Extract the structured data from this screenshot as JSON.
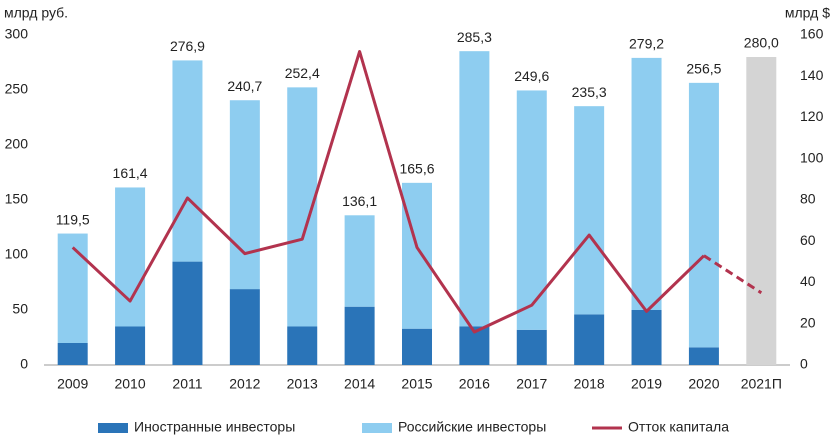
{
  "chart_data": {
    "type": "bar",
    "y_label": "млрд руб.",
    "y2_label": "млрд $",
    "categories": [
      "2009",
      "2010",
      "2011",
      "2012",
      "2013",
      "2014",
      "2015",
      "2016",
      "2017",
      "2018",
      "2019",
      "2020",
      "2021П"
    ],
    "series": [
      {
        "name": "Иностранные инвесторы",
        "color": "#2a74b8",
        "values": [
          20,
          35,
          94,
          69,
          35,
          53,
          33,
          35,
          32,
          46,
          50,
          16,
          null
        ]
      },
      {
        "name": "Российские инвесторы",
        "color": "#8ecdf0",
        "values": [
          99.5,
          126.4,
          182.9,
          171.7,
          217.4,
          83.1,
          132.6,
          250.3,
          217.6,
          189.3,
          229.2,
          240.5,
          null
        ]
      },
      {
        "name": "Отток капитала",
        "color": "#b2334e",
        "axis": "y2",
        "type": "line",
        "values": [
          57,
          31,
          81,
          54,
          61,
          152,
          57,
          16,
          29,
          63,
          26,
          53,
          35
        ]
      }
    ],
    "totals": {
      "color": "#d4d4d4",
      "values": [
        119.5,
        161.4,
        276.9,
        240.7,
        252.4,
        136.1,
        165.6,
        285.3,
        249.6,
        235.3,
        279.2,
        256.5,
        280.0
      ],
      "value_labels": [
        "119,5",
        "161,4",
        "276,9",
        "240,7",
        "252,4",
        "136,1",
        "165,6",
        "285,3",
        "249,6",
        "235,3",
        "279,2",
        "256,5",
        "280,0"
      ]
    },
    "ylim": [
      0,
      300
    ],
    "yticks": [
      0,
      50,
      100,
      150,
      200,
      250,
      300
    ],
    "y2lim": [
      0,
      160
    ],
    "y2ticks": [
      0,
      20,
      40,
      60,
      80,
      100,
      120,
      140,
      160
    ],
    "legend": "bottom"
  }
}
